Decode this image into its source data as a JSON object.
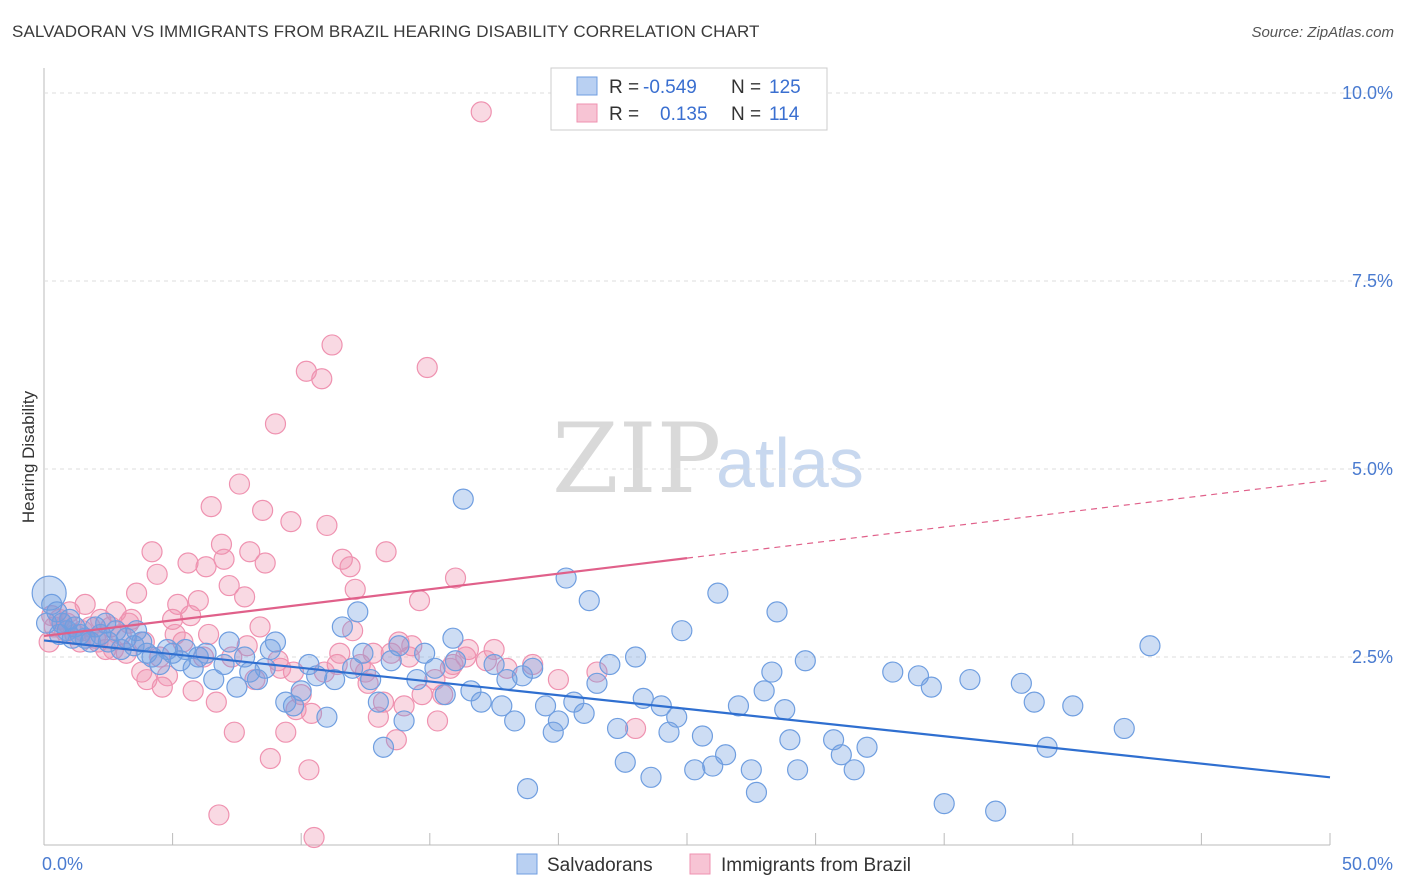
{
  "title": "SALVADORAN VS IMMIGRANTS FROM BRAZIL HEARING DISABILITY CORRELATION CHART",
  "source": "Source: ZipAtlas.com",
  "watermark": {
    "zip": "ZIP",
    "atlas": "atlas"
  },
  "legend": {
    "series1": {
      "r_label": "R =",
      "r_value": "-0.549",
      "n_label": "N =",
      "n_value": "125"
    },
    "series2": {
      "r_label": "R =",
      "r_value": "0.135",
      "n_label": "N =",
      "n_value": "114"
    }
  },
  "bottom_legend": {
    "series1": "Salvadorans",
    "series2": "Immigrants from Brazil"
  },
  "colors": {
    "blue": "#6f9ee0",
    "blue_line": "#2f6fd0",
    "pink": "#ef92b0",
    "pink_line": "#e0608a"
  },
  "chart_data": {
    "type": "scatter",
    "title": "SALVADORAN VS IMMIGRANTS FROM BRAZIL HEARING DISABILITY CORRELATION CHART",
    "xlabel": "",
    "ylabel": "Hearing Disability",
    "xlim": [
      0,
      50
    ],
    "ylim": [
      0,
      10.2
    ],
    "x_tick_labels": {
      "left": "0.0%",
      "right": "50.0%"
    },
    "y_ticks": [
      {
        "value": 2.5,
        "label": "2.5%"
      },
      {
        "value": 5.0,
        "label": "5.0%"
      },
      {
        "value": 7.5,
        "label": "7.5%"
      },
      {
        "value": 10.0,
        "label": "10.0%"
      }
    ],
    "x_minor_ticks": [
      0,
      5,
      10,
      15,
      20,
      25,
      30,
      35,
      40,
      45,
      50
    ],
    "grid": true,
    "series": [
      {
        "name": "Salvadorans",
        "r": -0.549,
        "n": 125,
        "trend": {
          "x0": 0,
          "y0": 2.72,
          "x1": 50,
          "y1": 0.9,
          "dashed_from": null
        },
        "points": [
          [
            0.2,
            3.35
          ],
          [
            0.3,
            3.2
          ],
          [
            0.5,
            3.1
          ],
          [
            0.7,
            2.95
          ],
          [
            0.9,
            2.85
          ],
          [
            1.0,
            3.0
          ],
          [
            1.2,
            2.9
          ],
          [
            1.4,
            2.8
          ],
          [
            1.6,
            2.75
          ],
          [
            1.8,
            2.7
          ],
          [
            2.0,
            2.9
          ],
          [
            2.2,
            2.8
          ],
          [
            2.5,
            2.7
          ],
          [
            2.8,
            2.85
          ],
          [
            3.0,
            2.6
          ],
          [
            3.2,
            2.75
          ],
          [
            3.5,
            2.65
          ],
          [
            3.8,
            2.7
          ],
          [
            4.0,
            2.55
          ],
          [
            4.2,
            2.5
          ],
          [
            4.5,
            2.4
          ],
          [
            4.8,
            2.6
          ],
          [
            5.0,
            2.55
          ],
          [
            5.3,
            2.45
          ],
          [
            5.5,
            2.6
          ],
          [
            5.8,
            2.35
          ],
          [
            6.0,
            2.5
          ],
          [
            6.3,
            2.55
          ],
          [
            6.6,
            2.2
          ],
          [
            7.0,
            2.4
          ],
          [
            7.2,
            2.7
          ],
          [
            7.5,
            2.1
          ],
          [
            7.8,
            2.5
          ],
          [
            8.0,
            2.3
          ],
          [
            8.3,
            2.2
          ],
          [
            8.6,
            2.35
          ],
          [
            8.8,
            2.6
          ],
          [
            9.0,
            2.7
          ],
          [
            9.4,
            1.9
          ],
          [
            9.7,
            1.85
          ],
          [
            10.0,
            2.05
          ],
          [
            10.3,
            2.4
          ],
          [
            10.6,
            2.25
          ],
          [
            11.0,
            1.7
          ],
          [
            11.3,
            2.2
          ],
          [
            11.6,
            2.9
          ],
          [
            12.0,
            2.35
          ],
          [
            12.2,
            3.1
          ],
          [
            12.4,
            2.55
          ],
          [
            12.7,
            2.2
          ],
          [
            13.0,
            1.9
          ],
          [
            13.2,
            1.3
          ],
          [
            13.5,
            2.45
          ],
          [
            13.8,
            2.65
          ],
          [
            14.0,
            1.65
          ],
          [
            14.5,
            2.2
          ],
          [
            14.8,
            2.55
          ],
          [
            15.2,
            2.35
          ],
          [
            15.6,
            2.0
          ],
          [
            15.9,
            2.75
          ],
          [
            16.0,
            2.45
          ],
          [
            16.3,
            4.6
          ],
          [
            16.6,
            2.05
          ],
          [
            17.0,
            1.9
          ],
          [
            17.5,
            2.4
          ],
          [
            17.8,
            1.85
          ],
          [
            18.0,
            2.2
          ],
          [
            18.3,
            1.65
          ],
          [
            18.6,
            2.25
          ],
          [
            18.8,
            0.75
          ],
          [
            19.0,
            2.35
          ],
          [
            19.5,
            1.85
          ],
          [
            19.8,
            1.5
          ],
          [
            20.0,
            1.65
          ],
          [
            20.3,
            3.55
          ],
          [
            20.6,
            1.9
          ],
          [
            21.0,
            1.75
          ],
          [
            21.2,
            3.25
          ],
          [
            21.5,
            2.15
          ],
          [
            22.0,
            2.4
          ],
          [
            22.3,
            1.55
          ],
          [
            22.6,
            1.1
          ],
          [
            23.0,
            2.5
          ],
          [
            23.3,
            1.95
          ],
          [
            23.6,
            0.9
          ],
          [
            24.0,
            1.85
          ],
          [
            24.3,
            1.5
          ],
          [
            24.6,
            1.7
          ],
          [
            24.8,
            2.85
          ],
          [
            25.3,
            1.0
          ],
          [
            25.6,
            1.45
          ],
          [
            26.0,
            1.05
          ],
          [
            26.2,
            3.35
          ],
          [
            26.5,
            1.2
          ],
          [
            27.0,
            1.85
          ],
          [
            27.5,
            1.0
          ],
          [
            27.7,
            0.7
          ],
          [
            28.0,
            2.05
          ],
          [
            28.3,
            2.3
          ],
          [
            28.5,
            3.1
          ],
          [
            28.8,
            1.8
          ],
          [
            29.0,
            1.4
          ],
          [
            29.3,
            1.0
          ],
          [
            29.6,
            2.45
          ],
          [
            30.7,
            1.4
          ],
          [
            31.0,
            1.2
          ],
          [
            31.5,
            1.0
          ],
          [
            32.0,
            1.3
          ],
          [
            33.0,
            2.3
          ],
          [
            34.0,
            2.25
          ],
          [
            34.5,
            2.1
          ],
          [
            35.0,
            0.55
          ],
          [
            36.0,
            2.2
          ],
          [
            37.0,
            0.45
          ],
          [
            38.0,
            2.15
          ],
          [
            38.5,
            1.9
          ],
          [
            39.0,
            1.3
          ],
          [
            40.0,
            1.85
          ],
          [
            42.0,
            1.55
          ],
          [
            43.0,
            2.65
          ],
          [
            0.1,
            2.95
          ],
          [
            0.6,
            2.8
          ],
          [
            1.1,
            2.75
          ],
          [
            2.4,
            2.95
          ],
          [
            3.6,
            2.85
          ]
        ]
      },
      {
        "name": "Immigrants from Brazil",
        "r": 0.135,
        "n": 114,
        "trend": {
          "x0": 0,
          "y0": 2.78,
          "x1": 50,
          "y1": 4.85,
          "solid_to_x": 25
        },
        "points": [
          [
            0.2,
            2.7
          ],
          [
            0.4,
            2.9
          ],
          [
            0.6,
            3.0
          ],
          [
            0.8,
            2.85
          ],
          [
            1.0,
            3.1
          ],
          [
            1.2,
            2.8
          ],
          [
            1.4,
            2.7
          ],
          [
            1.6,
            3.2
          ],
          [
            1.8,
            2.9
          ],
          [
            2.0,
            2.75
          ],
          [
            2.2,
            3.0
          ],
          [
            2.4,
            2.6
          ],
          [
            2.6,
            2.9
          ],
          [
            2.8,
            3.1
          ],
          [
            3.0,
            2.8
          ],
          [
            3.2,
            2.55
          ],
          [
            3.4,
            3.0
          ],
          [
            3.6,
            3.35
          ],
          [
            3.8,
            2.3
          ],
          [
            4.0,
            2.2
          ],
          [
            4.2,
            3.9
          ],
          [
            4.4,
            3.6
          ],
          [
            4.6,
            2.1
          ],
          [
            4.8,
            2.25
          ],
          [
            5.0,
            3.0
          ],
          [
            5.2,
            3.2
          ],
          [
            5.4,
            2.7
          ],
          [
            5.6,
            3.75
          ],
          [
            5.8,
            2.05
          ],
          [
            6.0,
            3.25
          ],
          [
            6.2,
            2.5
          ],
          [
            6.4,
            2.8
          ],
          [
            6.5,
            4.5
          ],
          [
            6.7,
            1.9
          ],
          [
            6.9,
            4.0
          ],
          [
            7.0,
            3.8
          ],
          [
            7.2,
            3.45
          ],
          [
            7.4,
            1.5
          ],
          [
            7.6,
            4.8
          ],
          [
            7.8,
            3.3
          ],
          [
            8.0,
            3.9
          ],
          [
            8.2,
            2.2
          ],
          [
            8.4,
            2.9
          ],
          [
            8.6,
            3.75
          ],
          [
            8.8,
            1.15
          ],
          [
            9.0,
            5.6
          ],
          [
            9.2,
            2.35
          ],
          [
            9.4,
            1.5
          ],
          [
            9.6,
            4.3
          ],
          [
            9.8,
            1.8
          ],
          [
            10.0,
            2.0
          ],
          [
            10.2,
            6.3
          ],
          [
            10.4,
            1.75
          ],
          [
            10.5,
            0.1
          ],
          [
            10.8,
            6.2
          ],
          [
            11.0,
            4.25
          ],
          [
            11.2,
            6.65
          ],
          [
            11.4,
            2.4
          ],
          [
            11.6,
            3.8
          ],
          [
            11.9,
            3.7
          ],
          [
            12.1,
            3.4
          ],
          [
            12.3,
            2.4
          ],
          [
            12.5,
            2.3
          ],
          [
            12.8,
            2.55
          ],
          [
            13.0,
            1.7
          ],
          [
            13.3,
            3.9
          ],
          [
            13.5,
            2.55
          ],
          [
            13.8,
            2.7
          ],
          [
            14.0,
            1.85
          ],
          [
            14.3,
            2.65
          ],
          [
            14.6,
            3.25
          ],
          [
            14.9,
            6.35
          ],
          [
            15.2,
            2.2
          ],
          [
            15.5,
            2.0
          ],
          [
            15.8,
            2.35
          ],
          [
            16.0,
            3.55
          ],
          [
            16.5,
            2.6
          ],
          [
            17.0,
            9.75
          ],
          [
            17.5,
            2.6
          ],
          [
            18.0,
            2.35
          ],
          [
            19.0,
            2.4
          ],
          [
            20.0,
            2.2
          ],
          [
            21.5,
            2.3
          ],
          [
            23.0,
            1.55
          ],
          [
            0.3,
            3.05
          ],
          [
            0.9,
            2.95
          ],
          [
            1.5,
            2.85
          ],
          [
            2.1,
            2.7
          ],
          [
            2.7,
            2.6
          ],
          [
            3.3,
            2.95
          ],
          [
            3.9,
            2.7
          ],
          [
            4.5,
            2.5
          ],
          [
            5.1,
            2.8
          ],
          [
            5.7,
            3.05
          ],
          [
            6.3,
            3.7
          ],
          [
            6.8,
            0.4
          ],
          [
            7.3,
            2.5
          ],
          [
            7.9,
            2.65
          ],
          [
            8.5,
            4.45
          ],
          [
            9.1,
            2.45
          ],
          [
            9.7,
            2.3
          ],
          [
            10.3,
            1.0
          ],
          [
            10.9,
            2.3
          ],
          [
            11.5,
            2.55
          ],
          [
            12.0,
            2.85
          ],
          [
            12.6,
            2.15
          ],
          [
            13.2,
            1.9
          ],
          [
            13.7,
            1.4
          ],
          [
            14.2,
            2.5
          ],
          [
            14.7,
            2.0
          ],
          [
            15.3,
            1.65
          ],
          [
            15.9,
            2.4
          ],
          [
            16.4,
            2.5
          ],
          [
            17.2,
            2.45
          ]
        ]
      }
    ]
  }
}
